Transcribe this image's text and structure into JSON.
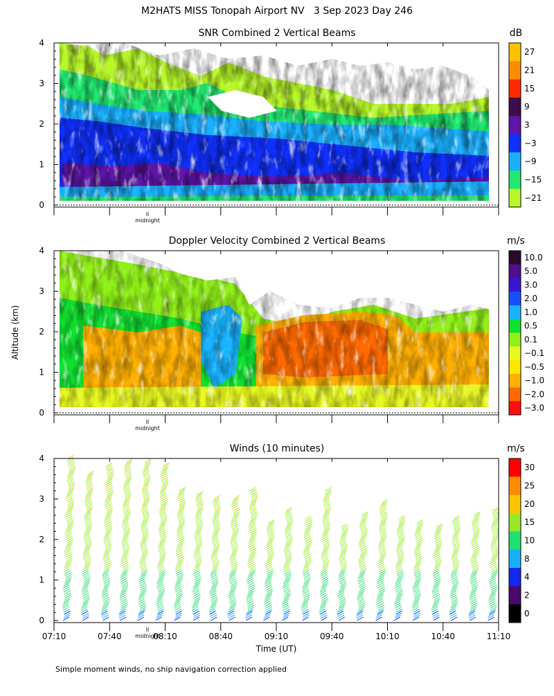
{
  "main_title": "M2HATS MISS Tonopah Airport NV   3 Sep 2023 Day 246",
  "ylabel": "Altitude (km)",
  "xlabel": "Time (UT)",
  "footnote": "Simple moment winds, no ship navigation correction applied",
  "midnight_label": "midnight",
  "midnight_mark": "ll",
  "chart_data": [
    {
      "type": "heatmap",
      "title": "SNR Combined 2 Vertical Beams",
      "unit": "dB",
      "ylim": [
        0,
        4
      ],
      "xlim": [
        "07:10",
        "11:10"
      ],
      "yticks": [
        "0",
        "1",
        "2",
        "3",
        "4"
      ],
      "colorbar": {
        "labels": [
          "27",
          "21",
          "15",
          "9",
          "3",
          "−3",
          "−9",
          "−15",
          "−21"
        ],
        "colors": [
          "#ffc200",
          "#ff8c00",
          "#ff2a00",
          "#3c0e4a",
          "#5e15a8",
          "#1030ff",
          "#1ab0ff",
          "#20e870",
          "#b8f82a"
        ]
      }
    },
    {
      "type": "heatmap",
      "title": "Doppler Velocity Combined 2 Vertical Beams",
      "unit": "m/s",
      "ylim": [
        0,
        4
      ],
      "xlim": [
        "07:10",
        "11:10"
      ],
      "yticks": [
        "0",
        "1",
        "2",
        "3",
        "4"
      ],
      "colorbar": {
        "labels": [
          "10.0",
          "5.0",
          "3.0",
          "2.0",
          "1.0",
          "0.5",
          "0.1",
          "−0.1",
          "−0.5",
          "−1.0",
          "−2.0",
          "−3.0"
        ],
        "colors": [
          "#2d0a2a",
          "#500f8c",
          "#3a16d4",
          "#1450ff",
          "#18b4ff",
          "#10e030",
          "#90f018",
          "#e8f820",
          "#ffe800",
          "#ffb000",
          "#ff6a00",
          "#ff0e0e"
        ]
      }
    },
    {
      "type": "scatter",
      "title": "Winds (10 minutes)",
      "unit": "m/s",
      "ylim": [
        0,
        4
      ],
      "xlim": [
        "07:10",
        "11:10"
      ],
      "yticks": [
        "0",
        "1",
        "2",
        "3",
        "4"
      ],
      "xticks": [
        "07:10",
        "07:40",
        "08:10",
        "08:40",
        "09:10",
        "09:40",
        "10:10",
        "10:40",
        "11:10"
      ],
      "colorbar": {
        "labels": [
          "30",
          "25",
          "20",
          "15",
          "10",
          "8",
          "4",
          "2",
          "0"
        ],
        "colors": [
          "#ff0000",
          "#ff8c00",
          "#ffc400",
          "#98e828",
          "#20e070",
          "#18b0ff",
          "#1428f0",
          "#4a0a6a",
          "#000000"
        ]
      }
    }
  ]
}
